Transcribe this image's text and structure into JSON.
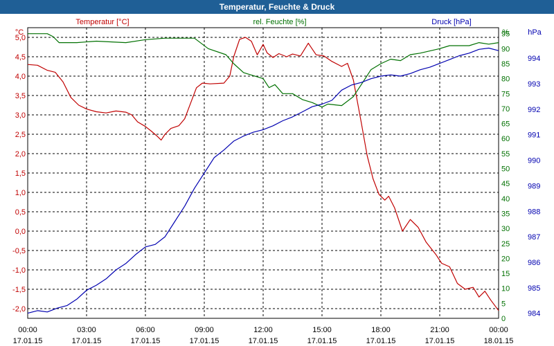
{
  "chart_data": {
    "type": "line",
    "title": "Temperatur, Feuchte & Druck",
    "x": {
      "ticks": [
        {
          "h": 0,
          "time": "00:00",
          "date": "17.01.15"
        },
        {
          "h": 3,
          "time": "03:00",
          "date": "17.01.15"
        },
        {
          "h": 6,
          "time": "06:00",
          "date": "17.01.15"
        },
        {
          "h": 9,
          "time": "09:00",
          "date": "17.01.15"
        },
        {
          "h": 12,
          "time": "12:00",
          "date": "17.01.15"
        },
        {
          "h": 15,
          "time": "15:00",
          "date": "17.01.15"
        },
        {
          "h": 18,
          "time": "18:00",
          "date": "17.01.15"
        },
        {
          "h": 21,
          "time": "21:00",
          "date": "17.01.15"
        },
        {
          "h": 24,
          "time": "00:00",
          "date": "18.01.15"
        }
      ],
      "range": [
        0,
        24
      ]
    },
    "axes": {
      "temperature": {
        "label": "Temperatur [°C]",
        "unit": "°C",
        "range": [
          -2.25,
          5.25
        ],
        "color": "#c00000",
        "ticks": [
          "5,0",
          "4,5",
          "4,0",
          "3,5",
          "3,0",
          "2,5",
          "2,0",
          "1,5",
          "1,0",
          "0,5",
          "0,0",
          "-0,5",
          "-1,0",
          "-1,5",
          "-2,0"
        ]
      },
      "humidity": {
        "label": "rel. Feuchte [%]",
        "unit": "%",
        "range": [
          0,
          97
        ],
        "color": "#007000",
        "ticks": [
          "95",
          "90",
          "85",
          "80",
          "75",
          "70",
          "65",
          "60",
          "55",
          "50",
          "45",
          "40",
          "35",
          "30",
          "25",
          "20",
          "15",
          "10",
          "5",
          "0"
        ]
      },
      "pressure": {
        "label": "Druck [hPa]",
        "unit": "hPa",
        "range": [
          983.8,
          995.2
        ],
        "color": "#0000b0",
        "ticks": [
          "994",
          "993",
          "992",
          "991",
          "990",
          "989",
          "988",
          "987",
          "986",
          "985",
          "984"
        ]
      }
    },
    "series": [
      {
        "name": "Temperatur",
        "axis": "temperature",
        "points": [
          [
            0,
            4.3
          ],
          [
            0.5,
            4.28
          ],
          [
            1,
            4.15
          ],
          [
            1.4,
            4.1
          ],
          [
            1.8,
            3.85
          ],
          [
            2.2,
            3.45
          ],
          [
            2.6,
            3.25
          ],
          [
            3,
            3.15
          ],
          [
            3.5,
            3.08
          ],
          [
            4,
            3.05
          ],
          [
            4.5,
            3.1
          ],
          [
            5,
            3.07
          ],
          [
            5.3,
            3.0
          ],
          [
            5.6,
            2.82
          ],
          [
            6,
            2.7
          ],
          [
            6.3,
            2.58
          ],
          [
            6.6,
            2.45
          ],
          [
            6.8,
            2.35
          ],
          [
            7,
            2.5
          ],
          [
            7.3,
            2.65
          ],
          [
            7.7,
            2.72
          ],
          [
            8,
            2.9
          ],
          [
            8.3,
            3.3
          ],
          [
            8.6,
            3.7
          ],
          [
            8.9,
            3.82
          ],
          [
            9.3,
            3.8
          ],
          [
            10,
            3.82
          ],
          [
            10.3,
            4.0
          ],
          [
            10.5,
            4.5
          ],
          [
            10.8,
            4.95
          ],
          [
            11.1,
            5.0
          ],
          [
            11.4,
            4.9
          ],
          [
            11.7,
            4.55
          ],
          [
            12,
            4.82
          ],
          [
            12.2,
            4.6
          ],
          [
            12.5,
            4.48
          ],
          [
            12.8,
            4.58
          ],
          [
            13.2,
            4.5
          ],
          [
            13.5,
            4.57
          ],
          [
            13.9,
            4.52
          ],
          [
            14.3,
            4.85
          ],
          [
            14.7,
            4.55
          ],
          [
            15.1,
            4.52
          ],
          [
            15.5,
            4.38
          ],
          [
            16,
            4.25
          ],
          [
            16.3,
            4.33
          ],
          [
            16.6,
            3.9
          ],
          [
            17,
            2.8
          ],
          [
            17.3,
            1.95
          ],
          [
            17.6,
            1.35
          ],
          [
            17.9,
            0.95
          ],
          [
            18.2,
            0.8
          ],
          [
            18.4,
            0.9
          ],
          [
            18.7,
            0.6
          ],
          [
            19.1,
            0.0
          ],
          [
            19.5,
            0.3
          ],
          [
            19.9,
            0.1
          ],
          [
            20.3,
            -0.28
          ],
          [
            20.8,
            -0.6
          ],
          [
            21.1,
            -0.83
          ],
          [
            21.5,
            -0.92
          ],
          [
            21.9,
            -1.35
          ],
          [
            22.3,
            -1.5
          ],
          [
            22.7,
            -1.45
          ],
          [
            23.0,
            -1.7
          ],
          [
            23.3,
            -1.55
          ],
          [
            23.6,
            -1.78
          ],
          [
            24,
            -2.05
          ]
        ]
      },
      {
        "name": "rel. Feuchte",
        "axis": "humidity",
        "points": [
          [
            0,
            95
          ],
          [
            1,
            95
          ],
          [
            1.3,
            94
          ],
          [
            1.6,
            92
          ],
          [
            2.5,
            92
          ],
          [
            3.5,
            92.5
          ],
          [
            5,
            92
          ],
          [
            6,
            93
          ],
          [
            7,
            93.5
          ],
          [
            8.5,
            93.5
          ],
          [
            9.2,
            90
          ],
          [
            10.1,
            88
          ],
          [
            10.5,
            85
          ],
          [
            11,
            82
          ],
          [
            11.5,
            81
          ],
          [
            12,
            80
          ],
          [
            12.3,
            77
          ],
          [
            12.6,
            78
          ],
          [
            13,
            75
          ],
          [
            13.5,
            75
          ],
          [
            14,
            73
          ],
          [
            14.5,
            72
          ],
          [
            15,
            70.5
          ],
          [
            15.3,
            71.5
          ],
          [
            16,
            71
          ],
          [
            16.6,
            74
          ],
          [
            17,
            78
          ],
          [
            17.5,
            83
          ],
          [
            18,
            85
          ],
          [
            18.5,
            86.5
          ],
          [
            19,
            86
          ],
          [
            19.5,
            88
          ],
          [
            20,
            88.5
          ],
          [
            21,
            90
          ],
          [
            21.5,
            91
          ],
          [
            22,
            91
          ],
          [
            22.5,
            91
          ],
          [
            23,
            92
          ],
          [
            23.5,
            91.5
          ],
          [
            24,
            92
          ]
        ]
      },
      {
        "name": "Druck",
        "axis": "pressure",
        "points": [
          [
            0,
            984
          ],
          [
            0.5,
            984.1
          ],
          [
            1,
            984.05
          ],
          [
            1.5,
            984.2
          ],
          [
            2,
            984.3
          ],
          [
            2.5,
            984.55
          ],
          [
            3,
            984.9
          ],
          [
            3.5,
            985.1
          ],
          [
            4,
            985.35
          ],
          [
            4.5,
            985.7
          ],
          [
            5,
            985.95
          ],
          [
            5.5,
            986.3
          ],
          [
            6,
            986.6
          ],
          [
            6.5,
            986.7
          ],
          [
            7,
            987.0
          ],
          [
            7.5,
            987.6
          ],
          [
            8,
            988.2
          ],
          [
            8.5,
            988.9
          ],
          [
            9,
            989.5
          ],
          [
            9.5,
            990.1
          ],
          [
            10,
            990.4
          ],
          [
            10.5,
            990.75
          ],
          [
            11,
            990.95
          ],
          [
            11.5,
            991.1
          ],
          [
            12,
            991.2
          ],
          [
            12.5,
            991.35
          ],
          [
            13,
            991.55
          ],
          [
            13.5,
            991.7
          ],
          [
            14,
            991.9
          ],
          [
            14.5,
            992.1
          ],
          [
            15,
            992.2
          ],
          [
            15.5,
            992.35
          ],
          [
            16,
            992.75
          ],
          [
            16.5,
            992.95
          ],
          [
            17,
            993.05
          ],
          [
            17.5,
            993.2
          ],
          [
            18,
            993.3
          ],
          [
            18.5,
            993.35
          ],
          [
            19,
            993.3
          ],
          [
            19.5,
            993.4
          ],
          [
            20,
            993.55
          ],
          [
            20.5,
            993.65
          ],
          [
            21,
            993.8
          ],
          [
            21.5,
            993.95
          ],
          [
            22,
            994.1
          ],
          [
            22.5,
            994.2
          ],
          [
            23,
            994.35
          ],
          [
            23.5,
            994.4
          ],
          [
            24,
            994.3
          ]
        ]
      }
    ]
  }
}
